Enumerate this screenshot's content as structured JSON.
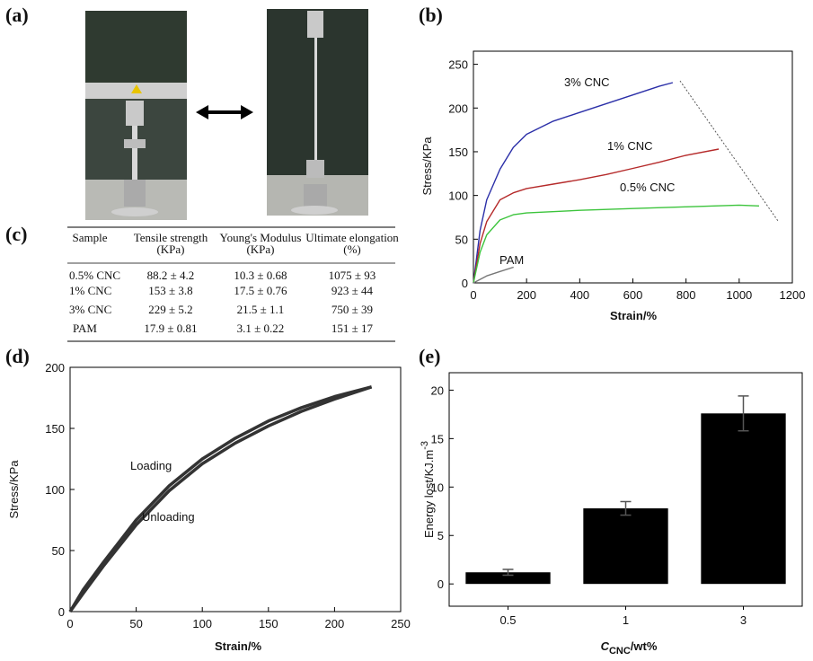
{
  "panel_labels": [
    "(a)",
    "(b)",
    "(c)",
    "(d)",
    "(e)"
  ],
  "table": {
    "header": [
      [
        "Sample"
      ],
      [
        "Tensile strength",
        "(KPa)"
      ],
      [
        "Young's Modulus",
        "(KPa)"
      ],
      [
        "Ultimate elongation",
        "(%)"
      ]
    ],
    "rows": [
      [
        "0.5% CNC",
        "88.2 ± 4.2",
        "10.3 ± 0.68",
        "1075 ± 93"
      ],
      [
        "1% CNC",
        "153 ± 3.8",
        "17.5 ± 0.76",
        "923 ± 44"
      ],
      [
        "3% CNC",
        "229 ± 5.2",
        "21.5 ± 1.1",
        "750 ± 39"
      ],
      [
        "PAM",
        "17.9 ± 0.81",
        "3.1 ± 0.22",
        "151 ± 17"
      ]
    ]
  },
  "chart_data": [
    {
      "type": "line",
      "xlabel": "Strain/%",
      "ylabel": "Stress/KPa",
      "xlim": [
        0,
        1200
      ],
      "xticks": [
        0,
        200,
        400,
        600,
        800,
        1000,
        1200
      ],
      "ylim": [
        0,
        265
      ],
      "yticks": [
        0,
        50,
        100,
        150,
        200,
        250
      ],
      "series": [
        {
          "name": "3% CNC",
          "color": "#2b2fa8",
          "x": [
            0,
            25,
            50,
            100,
            150,
            200,
            300,
            400,
            500,
            600,
            700,
            750
          ],
          "values": [
            0,
            60,
            95,
            130,
            155,
            170,
            185,
            195,
            205,
            215,
            225,
            229
          ]
        },
        {
          "name": "1% CNC",
          "color": "#b52a2a",
          "x": [
            0,
            25,
            50,
            100,
            150,
            200,
            300,
            400,
            500,
            600,
            700,
            800,
            923
          ],
          "values": [
            0,
            45,
            70,
            95,
            103,
            108,
            113,
            118,
            124,
            131,
            138,
            146,
            153
          ]
        },
        {
          "name": "0.5% CNC",
          "color": "#3cc43c",
          "x": [
            0,
            25,
            50,
            100,
            150,
            200,
            400,
            600,
            800,
            1000,
            1075
          ],
          "values": [
            0,
            35,
            55,
            72,
            78,
            80,
            83,
            85,
            87,
            89,
            88
          ]
        },
        {
          "name": "PAM",
          "color": "#777777",
          "x": [
            0,
            50,
            100,
            151
          ],
          "values": [
            0,
            8,
            13,
            18
          ]
        }
      ]
    },
    {
      "type": "line",
      "xlabel": "Strain/%",
      "ylabel": "Stress/KPa",
      "xlim": [
        0,
        250
      ],
      "xticks": [
        0,
        50,
        100,
        150,
        200,
        250
      ],
      "ylim": [
        0,
        200
      ],
      "yticks": [
        0,
        50,
        100,
        150,
        200
      ],
      "series": [
        {
          "name": "Loading",
          "color": "#333333",
          "x": [
            0,
            10,
            25,
            50,
            75,
            100,
            125,
            150,
            175,
            200,
            228
          ],
          "values": [
            0,
            18,
            40,
            75,
            103,
            125,
            142,
            156,
            167,
            176,
            184
          ]
        },
        {
          "name": "Unloading",
          "color": "#333333",
          "x": [
            228,
            200,
            175,
            150,
            125,
            100,
            75,
            50,
            25,
            10,
            0
          ],
          "values": [
            184,
            174,
            164,
            152,
            138,
            121,
            99,
            71,
            37,
            15,
            0
          ]
        }
      ]
    },
    {
      "type": "bar",
      "xlabel": {
        "text": "C",
        "sub": "CNC",
        "rest": "/wt%"
      },
      "ylabel": {
        "text": "Energy lost/KJ.m",
        "sup": "-3"
      },
      "categories": [
        "0.5",
        "1",
        "3"
      ],
      "values": [
        1.2,
        7.8,
        17.6
      ],
      "errors": [
        0.3,
        0.7,
        1.8
      ],
      "color": "#000000",
      "ylim": [
        -2.3,
        21.8
      ],
      "yticks": [
        0,
        5,
        10,
        15,
        20
      ]
    }
  ]
}
